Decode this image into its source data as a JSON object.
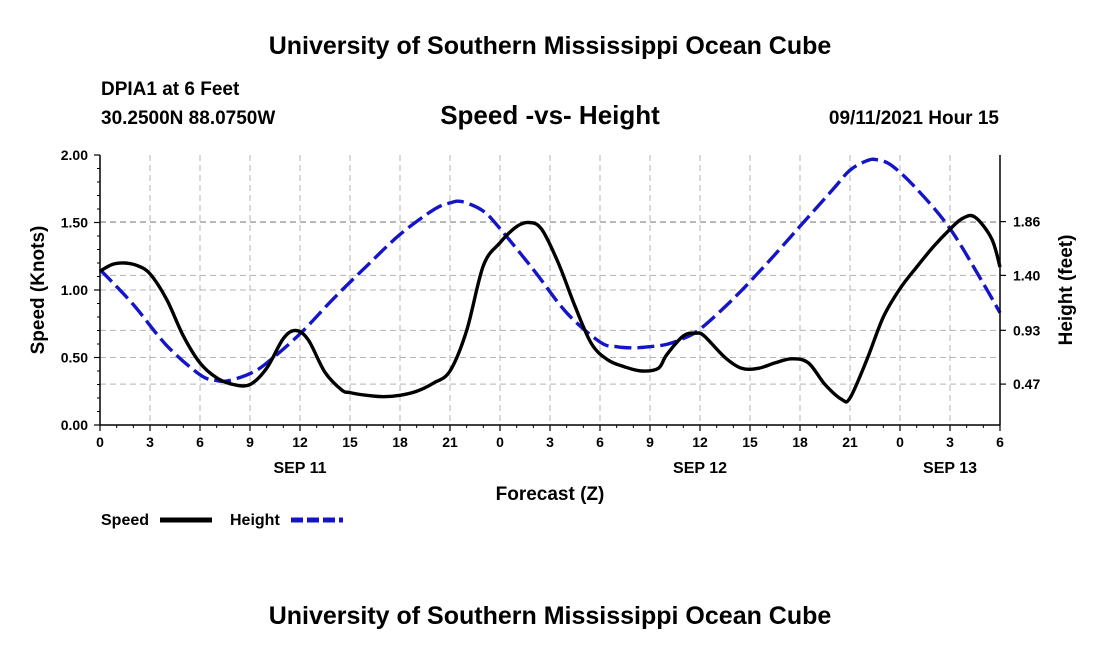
{
  "header": {
    "title_top": "University of Southern Mississippi Ocean Cube",
    "title_bottom": "University of Southern Mississippi Ocean Cube",
    "station": "DPIA1 at 6 Feet",
    "coords": "30.2500N  88.0750W",
    "datetime": "09/11/2021 Hour 15"
  },
  "legend": {
    "speed_label": "Speed",
    "height_label": "Height"
  },
  "colors": {
    "speed": "#000000",
    "height": "#1515c8",
    "grid": "#b4b4b4"
  },
  "chart_data": {
    "type": "line",
    "title": "Speed -vs- Height",
    "xlabel": "Forecast (Z)",
    "ylabel": "Speed (Knots)",
    "y2label": "Height (feet)",
    "x_unit": "hours from 09/11/2021 00Z",
    "xlim": [
      0,
      54
    ],
    "ylim": [
      0,
      2
    ],
    "y2lim": [
      0.12,
      2.43
    ],
    "x_ticks": [
      0,
      3,
      6,
      9,
      12,
      15,
      18,
      21,
      24,
      27,
      30,
      33,
      36,
      39,
      42,
      45,
      48,
      51,
      54
    ],
    "x_tick_labels": [
      "0",
      "3",
      "6",
      "9",
      "12",
      "15",
      "18",
      "21",
      "0",
      "3",
      "6",
      "9",
      "12",
      "15",
      "18",
      "21",
      "0",
      "3",
      "6"
    ],
    "y_ticks": [
      0.0,
      0.5,
      1.0,
      1.5,
      2.0
    ],
    "y_tick_labels": [
      "0.00",
      "0.50",
      "1.00",
      "1.50",
      "2.00"
    ],
    "y2_ticks": [
      0.47,
      0.93,
      1.4,
      1.86
    ],
    "y2_tick_labels": [
      "0.47",
      "0.93",
      "1.40",
      "1.86"
    ],
    "date_labels": [
      {
        "x": 12,
        "label": "SEP 11"
      },
      {
        "x": 36,
        "label": "SEP 12"
      },
      {
        "x": 51,
        "label": "SEP 13"
      }
    ],
    "grid": true,
    "series": [
      {
        "name": "Speed",
        "axis": "left",
        "style": "solid",
        "x": [
          0,
          0.75,
          1.5,
          2.25,
          3,
          4,
          5,
          6,
          7,
          8,
          9,
          10,
          11,
          11.75,
          12.5,
          13.5,
          14.5,
          15,
          16,
          17,
          18,
          19,
          20,
          21,
          22,
          23,
          24,
          25,
          25.75,
          26.5,
          27.5,
          28.5,
          29.5,
          30.5,
          31.5,
          32.5,
          33.5,
          34,
          35,
          35.75,
          36.25,
          37.5,
          38.5,
          39.5,
          40.5,
          41.5,
          42.5,
          43.5,
          44.5,
          45,
          46,
          47,
          48,
          49,
          50,
          51,
          51.75,
          52.5,
          53.5,
          54
        ],
        "values": [
          1.14,
          1.19,
          1.2,
          1.18,
          1.12,
          0.93,
          0.66,
          0.46,
          0.35,
          0.3,
          0.3,
          0.42,
          0.64,
          0.7,
          0.63,
          0.39,
          0.26,
          0.24,
          0.22,
          0.21,
          0.22,
          0.25,
          0.31,
          0.4,
          0.7,
          1.18,
          1.35,
          1.47,
          1.5,
          1.45,
          1.2,
          0.88,
          0.6,
          0.48,
          0.43,
          0.4,
          0.42,
          0.52,
          0.66,
          0.68,
          0.66,
          0.5,
          0.42,
          0.42,
          0.46,
          0.49,
          0.46,
          0.3,
          0.19,
          0.2,
          0.48,
          0.8,
          1.01,
          1.17,
          1.32,
          1.45,
          1.53,
          1.54,
          1.38,
          1.17
        ]
      },
      {
        "name": "Height",
        "axis": "right",
        "style": "dashed",
        "x": [
          0,
          2,
          4,
          6,
          7,
          7.75,
          9,
          10,
          12,
          14,
          16,
          18,
          20,
          21,
          21.75,
          23,
          24,
          26,
          28,
          30,
          31,
          32,
          33,
          34,
          35,
          36,
          38,
          40,
          42,
          44,
          45,
          46,
          46.6,
          47.5,
          49,
          51,
          53,
          54
        ],
        "values": [
          1.45,
          1.15,
          0.8,
          0.55,
          0.5,
          0.5,
          0.56,
          0.65,
          0.9,
          1.2,
          1.48,
          1.75,
          1.96,
          2.02,
          2.03,
          1.95,
          1.8,
          1.45,
          1.08,
          0.83,
          0.79,
          0.78,
          0.79,
          0.81,
          0.86,
          0.94,
          1.2,
          1.5,
          1.82,
          2.14,
          2.3,
          2.38,
          2.39,
          2.34,
          2.14,
          1.8,
          1.33,
          1.08
        ]
      }
    ]
  }
}
